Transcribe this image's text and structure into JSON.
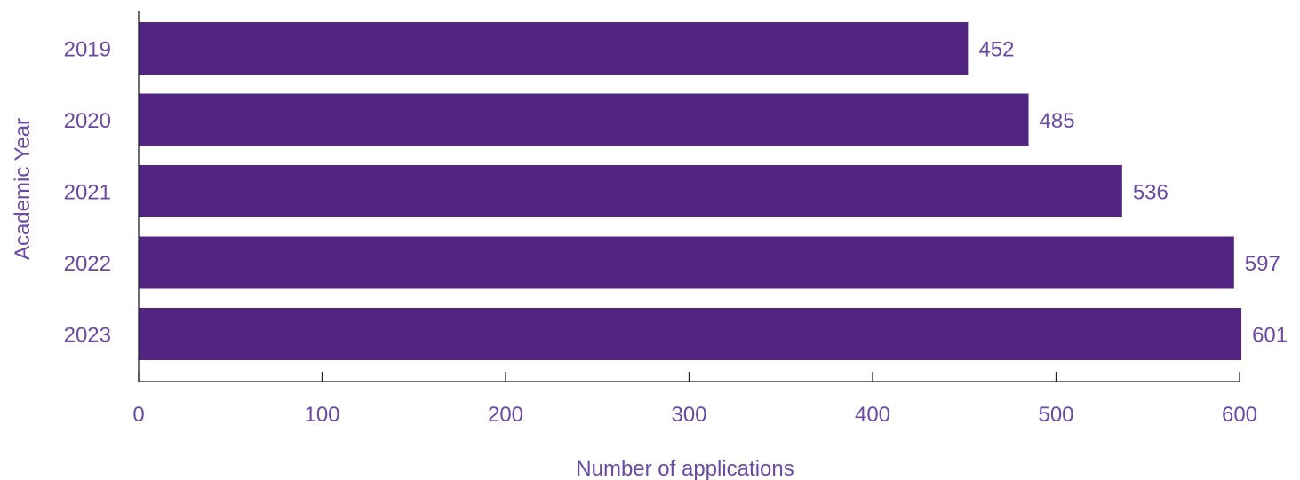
{
  "chart_data": {
    "type": "bar",
    "orientation": "horizontal",
    "title": "",
    "xlabel": "Number of applications",
    "ylabel": "Academic Year",
    "categories": [
      "2019",
      "2020",
      "2021",
      "2022",
      "2023"
    ],
    "values": [
      452,
      485,
      536,
      597,
      601
    ],
    "value_labels": [
      "452",
      "485",
      "536",
      "597",
      "601"
    ],
    "xlim": [
      0,
      610
    ],
    "x_ticks": [
      0,
      100,
      200,
      300,
      400,
      500,
      600
    ],
    "x_tick_labels": [
      "0",
      "100",
      "200",
      "300",
      "400",
      "500",
      "600"
    ],
    "grid": false,
    "legend": "none",
    "colors": {
      "bar": "#522583",
      "text": "#6b4aa3",
      "axis": "#222222"
    }
  }
}
